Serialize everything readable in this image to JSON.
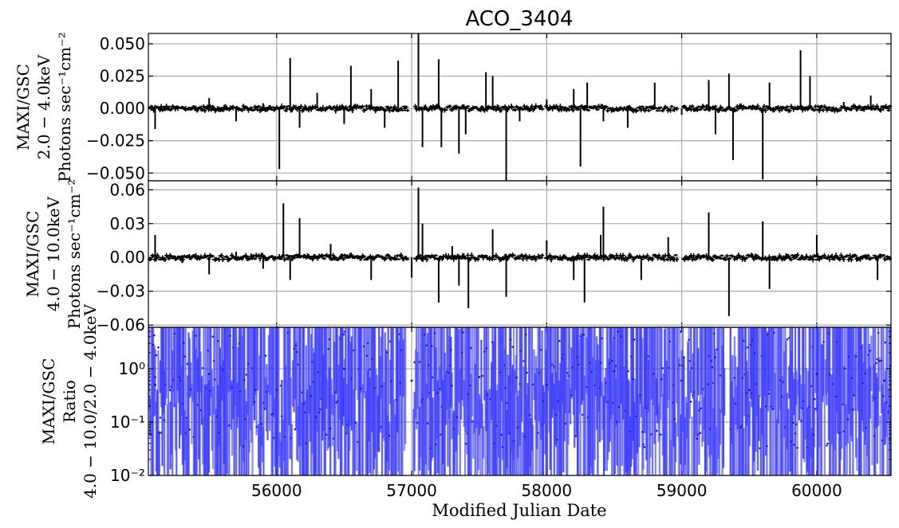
{
  "chart_data": [
    {
      "type": "line",
      "panel": "top",
      "title": "ACO_3404",
      "ylabel_lines": [
        "MAXI/GSC",
        "2.0 − 4.0keV",
        "Photons sec⁻¹cm⁻²"
      ],
      "xlim": [
        55050,
        60550
      ],
      "ylim": [
        -0.056,
        0.058
      ],
      "yticks": [
        -0.05,
        -0.025,
        0.0,
        0.025,
        0.05
      ],
      "ytick_labels": [
        "−0.050",
        "−0.025",
        "0.000",
        "0.025",
        "0.050"
      ],
      "grid": true,
      "series": [
        {
          "color": "#000000",
          "x": [
            55100,
            55300,
            55500,
            55700,
            55900,
            56020,
            56100,
            56170,
            56300,
            56500,
            56550,
            56700,
            56800,
            56900,
            57050,
            57080,
            57200,
            57220,
            57350,
            57400,
            57550,
            57600,
            57700,
            57800,
            58000,
            58200,
            58250,
            58300,
            58420,
            58600,
            58800,
            59000,
            59200,
            59250,
            59350,
            59380,
            59600,
            59650,
            59880,
            59950,
            60200,
            60400
          ],
          "y": [
            -0.016,
            0.002,
            0.008,
            -0.01,
            0.004,
            -0.047,
            0.039,
            -0.015,
            0.012,
            -0.012,
            0.033,
            0.015,
            -0.015,
            0.037,
            0.06,
            -0.03,
            0.038,
            -0.03,
            -0.035,
            -0.02,
            0.028,
            0.025,
            -0.058,
            -0.01,
            0.007,
            0.015,
            -0.045,
            0.02,
            -0.01,
            -0.015,
            0.02,
            -0.005,
            0.022,
            -0.02,
            0.027,
            -0.04,
            -0.055,
            0.02,
            0.045,
            0.025,
            0.005,
            0.01
          ]
        }
      ]
    },
    {
      "type": "line",
      "panel": "middle",
      "ylabel_lines": [
        "MAXI/GSC",
        "4.0 − 10.0keV",
        "Photons sec⁻¹cm⁻²"
      ],
      "xlim": [
        55050,
        60550
      ],
      "ylim": [
        -0.062,
        0.068
      ],
      "yticks": [
        -0.06,
        -0.03,
        0.0,
        0.03,
        0.06
      ],
      "ytick_labels": [
        "−0.060",
        "−0.030",
        "0.000",
        "0.030",
        "0.060"
      ],
      "display_tick_labels": [
        "−0.06",
        "−0.03",
        "0.00",
        "0.03",
        "0.06"
      ],
      "grid": true,
      "series": [
        {
          "color": "#000000",
          "x": [
            55100,
            55300,
            55500,
            55700,
            55900,
            56050,
            56100,
            56170,
            56400,
            56700,
            57000,
            57050,
            57080,
            57200,
            57300,
            57350,
            57420,
            57600,
            57700,
            58000,
            58200,
            58280,
            58400,
            58420,
            58700,
            58900,
            59200,
            59350,
            59600,
            59650,
            60000,
            60450
          ],
          "y": [
            0.02,
            -0.005,
            -0.015,
            0.005,
            -0.01,
            0.048,
            -0.02,
            0.035,
            0.012,
            -0.02,
            -0.018,
            0.062,
            0.03,
            -0.04,
            0.01,
            -0.025,
            -0.045,
            0.025,
            -0.035,
            0.015,
            -0.02,
            -0.04,
            0.02,
            0.045,
            -0.02,
            0.018,
            0.04,
            -0.052,
            0.032,
            -0.028,
            0.02,
            -0.02
          ]
        }
      ]
    },
    {
      "type": "line",
      "panel": "bottom",
      "ylabel_lines": [
        "MAXI/GSC",
        "Ratio",
        "4.0 − 10.0/2.0 − 4.0keV"
      ],
      "xlabel": "Modified Julian Date",
      "xlim": [
        55050,
        60550
      ],
      "xticks": [
        56000,
        57000,
        58000,
        59000,
        60000
      ],
      "xtick_labels": [
        "56000",
        "57000",
        "58000",
        "59000",
        "60000"
      ],
      "yscale": "log",
      "ylim": [
        0.01,
        6
      ],
      "yticks": [
        0.01,
        0.1,
        1
      ],
      "ytick_labels": [
        "10⁻²",
        "10⁻¹",
        "10⁰"
      ],
      "grid": true,
      "series": [
        {
          "color": "#4444ff",
          "note_points_dense": true,
          "x": [
            55100,
            55500,
            56000,
            56500,
            57000,
            57500,
            58000,
            58500,
            59000,
            59500,
            60000,
            60500
          ],
          "y": [
            0.5,
            0.8,
            0.4,
            1.0,
            0.6,
            0.7,
            0.5,
            0.9,
            0.6,
            0.4,
            0.8,
            0.6
          ]
        }
      ]
    }
  ]
}
